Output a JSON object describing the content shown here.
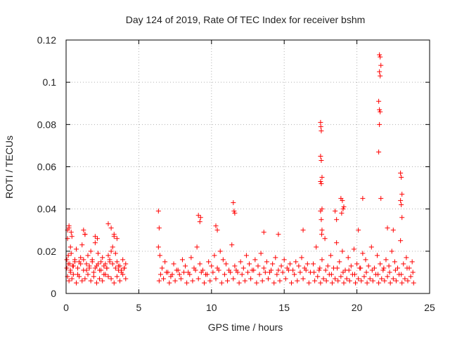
{
  "chart_data": {
    "type": "scatter",
    "title": "Day 124 of 2019, Rate Of TEC Index for receiver bshm",
    "xlabel": "GPS time / hours",
    "ylabel": "ROTI / TECUs",
    "xlim": [
      0,
      25
    ],
    "ylim": [
      0,
      0.12
    ],
    "xticks": [
      0,
      5,
      10,
      15,
      20,
      25
    ],
    "xtick_labels": [
      "0",
      "5",
      "10",
      "15",
      "20",
      "25"
    ],
    "yticks": [
      0,
      0.02,
      0.04,
      0.06,
      0.08,
      0.1,
      0.12
    ],
    "ytick_labels": [
      "0",
      "0.02",
      "0.04",
      "0.06",
      "0.08",
      "0.1",
      "0.12"
    ],
    "grid": true,
    "marker": "plus",
    "marker_color": "#ff0000",
    "series": [
      {
        "name": "ROTI",
        "x": [
          0.05,
          0.1,
          0.15,
          0.2,
          0.25,
          0.3,
          0.35,
          0.4,
          0.5,
          0.6,
          0.7,
          0.8,
          0.9,
          1.0,
          1.1,
          1.2,
          1.3,
          1.4,
          1.5,
          1.6,
          1.7,
          1.8,
          1.9,
          2.0,
          2.1,
          2.2,
          2.3,
          2.4,
          2.5,
          2.6,
          2.7,
          2.8,
          2.9,
          3.0,
          3.1,
          3.2,
          3.3,
          3.4,
          3.5,
          3.6,
          3.7,
          3.8,
          3.9,
          4.0,
          4.1,
          0.1,
          0.2,
          0.3,
          0.4,
          0.5,
          0.7,
          0.9,
          1.1,
          1.3,
          1.5,
          1.7,
          1.9,
          2.1,
          2.3,
          2.5,
          2.7,
          2.9,
          3.1,
          3.3,
          3.5,
          3.7,
          3.9,
          4.1,
          0.05,
          0.15,
          0.3,
          0.45,
          0.6,
          0.8,
          1.0,
          1.2,
          1.4,
          1.6,
          1.8,
          2.0,
          2.2,
          2.4,
          2.6,
          2.8,
          3.0,
          3.2,
          3.4,
          3.6,
          3.8,
          4.0,
          0.1,
          0.2,
          0.35,
          1.2,
          1.3,
          2.0,
          2.15,
          2.9,
          3.1,
          3.3,
          3.5,
          6.35,
          6.45,
          6.6,
          6.8,
          7.0,
          7.2,
          7.4,
          7.6,
          7.8,
          8.0,
          8.2,
          8.4,
          8.6,
          8.8,
          9.0,
          9.2,
          9.4,
          9.6,
          9.8,
          10.0,
          10.2,
          10.4,
          10.6,
          10.8,
          11.0,
          11.2,
          11.4,
          11.6,
          11.8,
          12.0,
          12.2,
          12.4,
          12.6,
          12.8,
          13.0,
          13.2,
          13.4,
          13.6,
          13.8,
          14.0,
          14.2,
          14.4,
          14.6,
          14.8,
          15.0,
          15.2,
          15.4,
          15.6,
          15.8,
          16.0,
          16.2,
          16.4,
          16.6,
          16.8,
          6.4,
          6.7,
          7.1,
          7.5,
          7.9,
          8.3,
          8.7,
          9.1,
          9.5,
          9.9,
          10.3,
          10.7,
          11.1,
          11.5,
          11.9,
          12.3,
          12.7,
          13.1,
          13.5,
          13.9,
          14.3,
          14.7,
          15.1,
          15.5,
          15.9,
          16.3,
          16.7,
          6.5,
          6.9,
          7.3,
          7.7,
          8.1,
          8.5,
          8.9,
          9.3,
          9.7,
          10.1,
          10.5,
          10.9,
          11.3,
          11.7,
          12.1,
          12.5,
          12.9,
          13.3,
          13.7,
          14.1,
          14.5,
          14.9,
          15.3,
          15.7,
          16.1,
          16.5,
          6.35,
          6.4,
          9.1,
          9.2,
          9.25,
          10.3,
          10.4,
          11.5,
          11.55,
          11.6,
          13.6,
          14.6,
          16.3,
          17.0,
          17.2,
          17.4,
          17.6,
          17.8,
          18.0,
          18.2,
          18.4,
          18.6,
          18.8,
          19.0,
          19.2,
          19.4,
          19.6,
          19.8,
          20.0,
          20.2,
          20.4,
          20.6,
          20.8,
          21.0,
          21.2,
          21.4,
          21.6,
          21.8,
          22.0,
          22.2,
          22.4,
          22.6,
          22.8,
          23.0,
          23.2,
          23.4,
          23.6,
          23.8,
          17.1,
          17.3,
          17.5,
          17.7,
          17.9,
          18.1,
          18.3,
          18.5,
          18.7,
          18.9,
          19.1,
          19.3,
          19.5,
          19.7,
          19.9,
          20.1,
          20.3,
          20.5,
          20.7,
          20.9,
          21.1,
          21.3,
          21.5,
          21.7,
          21.9,
          22.1,
          22.3,
          22.5,
          22.7,
          22.9,
          23.1,
          23.3,
          23.5,
          23.7,
          23.9,
          17.05,
          17.45,
          17.85,
          18.25,
          18.65,
          19.05,
          19.45,
          19.85,
          20.25,
          20.65,
          21.05,
          21.45,
          21.85,
          22.25,
          22.65,
          23.05,
          23.45,
          23.85,
          17.5,
          17.52,
          17.55,
          17.5,
          17.55,
          17.6,
          17.5,
          17.55,
          17.6,
          17.5,
          17.55,
          17.6,
          17.58,
          21.55,
          21.6,
          21.65,
          21.55,
          21.6,
          21.5,
          21.55,
          21.6,
          21.55,
          21.5,
          21.65,
          23.0,
          23.05,
          23.1,
          23.0,
          23.05,
          23.1,
          18.9,
          19.0,
          19.1,
          19.05,
          18.95,
          18.5,
          18.6,
          20.1,
          20.4,
          22.1,
          22.5
        ],
        "y": [
          0.012,
          0.026,
          0.018,
          0.031,
          0.014,
          0.022,
          0.019,
          0.027,
          0.013,
          0.016,
          0.021,
          0.009,
          0.015,
          0.017,
          0.023,
          0.011,
          0.028,
          0.014,
          0.018,
          0.012,
          0.02,
          0.016,
          0.01,
          0.024,
          0.013,
          0.019,
          0.011,
          0.015,
          0.017,
          0.009,
          0.014,
          0.012,
          0.018,
          0.016,
          0.02,
          0.022,
          0.027,
          0.019,
          0.015,
          0.011,
          0.013,
          0.01,
          0.016,
          0.012,
          0.014,
          0.008,
          0.006,
          0.01,
          0.007,
          0.009,
          0.005,
          0.008,
          0.006,
          0.007,
          0.009,
          0.006,
          0.008,
          0.005,
          0.007,
          0.006,
          0.009,
          0.008,
          0.007,
          0.005,
          0.008,
          0.006,
          0.009,
          0.007,
          0.016,
          0.014,
          0.011,
          0.013,
          0.015,
          0.012,
          0.014,
          0.016,
          0.011,
          0.013,
          0.015,
          0.012,
          0.014,
          0.011,
          0.013,
          0.012,
          0.015,
          0.014,
          0.012,
          0.013,
          0.011,
          0.012,
          0.03,
          0.032,
          0.029,
          0.03,
          0.028,
          0.027,
          0.026,
          0.033,
          0.031,
          0.028,
          0.026,
          0.022,
          0.018,
          0.012,
          0.015,
          0.01,
          0.008,
          0.014,
          0.011,
          0.009,
          0.016,
          0.013,
          0.01,
          0.017,
          0.012,
          0.022,
          0.014,
          0.011,
          0.009,
          0.015,
          0.013,
          0.018,
          0.012,
          0.02,
          0.016,
          0.014,
          0.011,
          0.023,
          0.013,
          0.01,
          0.015,
          0.012,
          0.018,
          0.014,
          0.011,
          0.016,
          0.013,
          0.019,
          0.012,
          0.015,
          0.01,
          0.014,
          0.017,
          0.011,
          0.013,
          0.016,
          0.012,
          0.014,
          0.011,
          0.015,
          0.013,
          0.017,
          0.012,
          0.014,
          0.01,
          0.006,
          0.007,
          0.005,
          0.006,
          0.007,
          0.005,
          0.006,
          0.007,
          0.005,
          0.006,
          0.007,
          0.005,
          0.006,
          0.007,
          0.005,
          0.006,
          0.007,
          0.005,
          0.006,
          0.007,
          0.005,
          0.006,
          0.007,
          0.005,
          0.006,
          0.007,
          0.005,
          0.009,
          0.01,
          0.009,
          0.011,
          0.01,
          0.009,
          0.011,
          0.01,
          0.009,
          0.01,
          0.011,
          0.009,
          0.01,
          0.011,
          0.009,
          0.01,
          0.011,
          0.009,
          0.01,
          0.011,
          0.009,
          0.01,
          0.011,
          0.009,
          0.01,
          0.011,
          0.039,
          0.031,
          0.037,
          0.034,
          0.036,
          0.032,
          0.03,
          0.043,
          0.039,
          0.038,
          0.029,
          0.028,
          0.03,
          0.014,
          0.022,
          0.011,
          0.016,
          0.026,
          0.013,
          0.018,
          0.012,
          0.024,
          0.015,
          0.02,
          0.011,
          0.017,
          0.013,
          0.021,
          0.014,
          0.012,
          0.019,
          0.016,
          0.013,
          0.022,
          0.012,
          0.018,
          0.014,
          0.011,
          0.016,
          0.013,
          0.02,
          0.015,
          0.012,
          0.025,
          0.014,
          0.017,
          0.012,
          0.015,
          0.006,
          0.008,
          0.005,
          0.007,
          0.006,
          0.009,
          0.005,
          0.007,
          0.006,
          0.008,
          0.005,
          0.007,
          0.006,
          0.009,
          0.005,
          0.007,
          0.006,
          0.008,
          0.005,
          0.007,
          0.006,
          0.009,
          0.005,
          0.007,
          0.006,
          0.008,
          0.005,
          0.007,
          0.006,
          0.009,
          0.005,
          0.007,
          0.006,
          0.008,
          0.005,
          0.01,
          0.012,
          0.011,
          0.009,
          0.012,
          0.01,
          0.011,
          0.009,
          0.012,
          0.01,
          0.011,
          0.009,
          0.012,
          0.01,
          0.011,
          0.009,
          0.012,
          0.01,
          0.081,
          0.079,
          0.077,
          0.065,
          0.063,
          0.055,
          0.053,
          0.052,
          0.04,
          0.039,
          0.035,
          0.03,
          0.028,
          0.113,
          0.112,
          0.108,
          0.105,
          0.103,
          0.091,
          0.087,
          0.086,
          0.08,
          0.067,
          0.045,
          0.057,
          0.055,
          0.047,
          0.044,
          0.042,
          0.036,
          0.045,
          0.044,
          0.041,
          0.04,
          0.038,
          0.039,
          0.035,
          0.03,
          0.045,
          0.031,
          0.03
        ]
      }
    ]
  }
}
